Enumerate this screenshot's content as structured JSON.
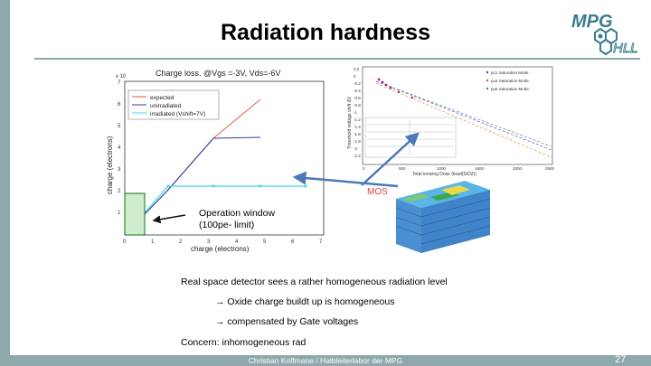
{
  "slide": {
    "title": "Radiation hardness",
    "footer": "Christian Koffmane / Halbleiterlabor der MPG",
    "page_number": "27",
    "colors": {
      "frame": "#8fa8ac",
      "logo": "#3a7d8c"
    }
  },
  "logo": {
    "icon": "mpg-hll-logo",
    "text_top": "MPG",
    "text_bottom": "HLL"
  },
  "figure": {
    "left_plot": {
      "title": "Charge loss. @Vgs =-3V, Vds=-6V",
      "ylabel": "charge (electrons)",
      "xlabel": "charge (electrons)",
      "axis_exponent": "x 10",
      "yticks": [
        "1",
        "2",
        "3",
        "4",
        "5",
        "6",
        "7"
      ],
      "xticks": [
        "0",
        "1",
        "2",
        "3",
        "4",
        "5",
        "6",
        "7"
      ],
      "legend": [
        "expected",
        "unirradiated",
        "irradiated (Vshift=7V)"
      ]
    },
    "right_plot": {
      "ylabel": "Threshold voltage shift ΔV",
      "xlabel": "Total ionizing Dose (krad(SiO2))",
      "yticks": [
        "0.2",
        "0",
        "-0.2",
        "-0.4",
        "-0.6",
        "-0.8",
        "-1",
        "-1.2",
        "-1.4",
        "-1.6",
        "-1.8",
        "-2",
        "-2.2"
      ],
      "xticks": [
        "0",
        "500",
        "1000",
        "1500",
        "2000",
        "2500"
      ],
      "legend": [
        "pc1 Saturation Mode",
        "pu4 Saturation Mode",
        "pu6 Saturation Mode"
      ]
    },
    "mos_label": "MOS"
  },
  "annotations": {
    "operation_window_line1": "Operation window",
    "operation_window_line2": "(100pe- limit)"
  },
  "body": {
    "line1": "Real space detector sees a rather homogeneous radiation level",
    "line2": "→ Oxide charge buildt up is homogeneous",
    "line3": "→ compensated by Gate voltages",
    "line4": "Concern: inhomogeneous rad"
  }
}
